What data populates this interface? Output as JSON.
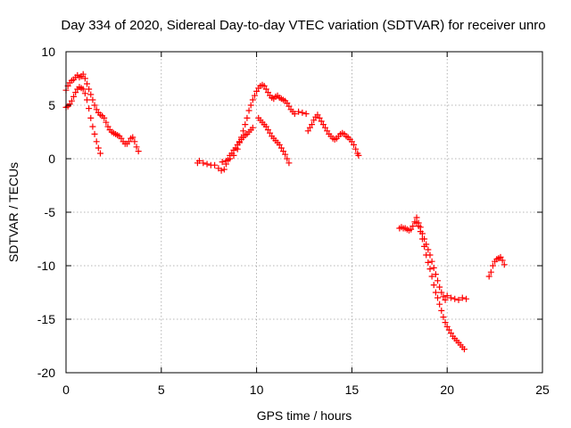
{
  "chart_data": {
    "type": "scatter",
    "title": "Day 334 of 2020, Sidereal Day-to-day VTEC variation (SDTVAR) for receiver unro",
    "xlabel": "GPS time / hours",
    "ylabel": "SDTVAR / TECUs",
    "xlim": [
      0,
      25
    ],
    "ylim": [
      -20,
      10
    ],
    "xticks": [
      0,
      5,
      10,
      15,
      20,
      25
    ],
    "yticks": [
      -20,
      -15,
      -10,
      -5,
      0,
      5,
      10
    ],
    "xtick_labels": [
      "0",
      "5",
      "10",
      "15",
      "20",
      "25"
    ],
    "ytick_labels": [
      "-20",
      "-15",
      "-10",
      "-5",
      "0",
      "5",
      "10"
    ],
    "grid": true,
    "marker": "+",
    "series": [
      {
        "name": "SDTVAR",
        "color": "#ff0000",
        "points": [
          [
            0.0,
            6.4
          ],
          [
            0.1,
            6.8
          ],
          [
            0.2,
            7.1
          ],
          [
            0.3,
            7.3
          ],
          [
            0.4,
            7.4
          ],
          [
            0.5,
            7.6
          ],
          [
            0.6,
            7.8
          ],
          [
            0.7,
            7.6
          ],
          [
            0.8,
            7.7
          ],
          [
            0.9,
            7.9
          ],
          [
            1.0,
            7.5
          ],
          [
            1.1,
            7.0
          ],
          [
            1.2,
            6.5
          ],
          [
            1.3,
            6.0
          ],
          [
            1.4,
            5.5
          ],
          [
            1.5,
            5.0
          ],
          [
            1.6,
            4.6
          ],
          [
            1.7,
            4.3
          ],
          [
            1.8,
            4.1
          ],
          [
            1.9,
            4.0
          ],
          [
            2.0,
            3.8
          ],
          [
            2.1,
            3.4
          ],
          [
            2.2,
            3.0
          ],
          [
            2.3,
            2.7
          ],
          [
            2.4,
            2.5
          ],
          [
            2.5,
            2.4
          ],
          [
            2.6,
            2.3
          ],
          [
            2.7,
            2.2
          ],
          [
            2.8,
            2.1
          ],
          [
            2.9,
            1.9
          ],
          [
            3.0,
            1.6
          ],
          [
            3.1,
            1.4
          ],
          [
            3.2,
            1.4
          ],
          [
            3.3,
            1.6
          ],
          [
            3.4,
            1.9
          ],
          [
            3.5,
            2.0
          ],
          [
            3.6,
            1.6
          ],
          [
            3.7,
            1.1
          ],
          [
            3.8,
            0.7
          ],
          [
            0.0,
            4.8
          ],
          [
            0.1,
            4.9
          ],
          [
            0.2,
            5.1
          ],
          [
            0.3,
            5.4
          ],
          [
            0.4,
            5.8
          ],
          [
            0.5,
            6.2
          ],
          [
            0.6,
            6.5
          ],
          [
            0.7,
            6.7
          ],
          [
            0.8,
            6.6
          ],
          [
            0.9,
            6.5
          ],
          [
            1.0,
            6.1
          ],
          [
            1.1,
            5.5
          ],
          [
            1.2,
            4.7
          ],
          [
            1.3,
            3.8
          ],
          [
            1.4,
            3.0
          ],
          [
            1.5,
            2.3
          ],
          [
            1.6,
            1.6
          ],
          [
            1.7,
            1.0
          ],
          [
            1.8,
            0.5
          ],
          [
            6.9,
            -0.4
          ],
          [
            7.0,
            -0.2
          ],
          [
            7.2,
            -0.4
          ],
          [
            7.4,
            -0.5
          ],
          [
            7.6,
            -0.6
          ],
          [
            7.8,
            -0.6
          ],
          [
            8.0,
            -0.9
          ],
          [
            8.15,
            -1.1
          ],
          [
            8.3,
            -1.0
          ],
          [
            8.4,
            -0.5
          ],
          [
            8.5,
            -0.1
          ],
          [
            8.6,
            0.3
          ],
          [
            8.7,
            0.5
          ],
          [
            8.8,
            0.8
          ],
          [
            8.9,
            1.0
          ],
          [
            9.0,
            1.3
          ],
          [
            9.1,
            1.6
          ],
          [
            9.2,
            1.8
          ],
          [
            9.3,
            2.0
          ],
          [
            9.4,
            2.2
          ],
          [
            9.5,
            2.3
          ],
          [
            9.6,
            2.5
          ],
          [
            9.7,
            2.7
          ],
          [
            9.8,
            2.9
          ],
          [
            8.2,
            -0.3
          ],
          [
            8.4,
            -0.2
          ],
          [
            8.6,
            0.0
          ],
          [
            8.8,
            0.3
          ],
          [
            9.0,
            0.9
          ],
          [
            9.1,
            1.5
          ],
          [
            9.2,
            2.0
          ],
          [
            9.3,
            2.6
          ],
          [
            9.4,
            3.2
          ],
          [
            9.5,
            3.8
          ],
          [
            9.6,
            4.5
          ],
          [
            9.7,
            5.0
          ],
          [
            9.8,
            5.5
          ],
          [
            9.9,
            5.9
          ],
          [
            10.0,
            6.3
          ],
          [
            10.1,
            6.6
          ],
          [
            10.2,
            6.8
          ],
          [
            10.3,
            6.9
          ],
          [
            10.4,
            6.8
          ],
          [
            10.5,
            6.5
          ],
          [
            10.6,
            6.2
          ],
          [
            10.7,
            5.9
          ],
          [
            10.8,
            5.7
          ],
          [
            10.9,
            5.6
          ],
          [
            11.0,
            5.8
          ],
          [
            11.1,
            5.9
          ],
          [
            11.2,
            5.7
          ],
          [
            11.3,
            5.6
          ],
          [
            11.4,
            5.5
          ],
          [
            11.5,
            5.4
          ],
          [
            11.6,
            5.2
          ],
          [
            11.7,
            4.9
          ],
          [
            11.8,
            4.6
          ],
          [
            11.9,
            4.4
          ],
          [
            12.0,
            4.2
          ],
          [
            12.2,
            4.4
          ],
          [
            12.4,
            4.3
          ],
          [
            12.6,
            4.2
          ],
          [
            10.1,
            3.8
          ],
          [
            10.2,
            3.6
          ],
          [
            10.3,
            3.4
          ],
          [
            10.4,
            3.2
          ],
          [
            10.5,
            3.0
          ],
          [
            10.6,
            2.7
          ],
          [
            10.7,
            2.4
          ],
          [
            10.8,
            2.1
          ],
          [
            10.9,
            1.9
          ],
          [
            11.0,
            1.7
          ],
          [
            11.1,
            1.5
          ],
          [
            11.2,
            1.3
          ],
          [
            11.3,
            1.0
          ],
          [
            11.4,
            0.7
          ],
          [
            11.5,
            0.4
          ],
          [
            11.6,
            0.0
          ],
          [
            11.7,
            -0.4
          ],
          [
            12.7,
            2.6
          ],
          [
            12.8,
            2.9
          ],
          [
            12.9,
            3.2
          ],
          [
            13.0,
            3.6
          ],
          [
            13.1,
            3.9
          ],
          [
            13.2,
            4.1
          ],
          [
            13.3,
            3.8
          ],
          [
            13.4,
            3.5
          ],
          [
            13.5,
            3.2
          ],
          [
            13.6,
            2.9
          ],
          [
            13.7,
            2.6
          ],
          [
            13.8,
            2.3
          ],
          [
            13.9,
            2.1
          ],
          [
            14.0,
            1.9
          ],
          [
            14.1,
            1.8
          ],
          [
            14.2,
            1.9
          ],
          [
            14.3,
            2.1
          ],
          [
            14.4,
            2.3
          ],
          [
            14.5,
            2.4
          ],
          [
            14.6,
            2.3
          ],
          [
            14.7,
            2.1
          ],
          [
            14.8,
            2.0
          ],
          [
            14.9,
            1.8
          ],
          [
            15.0,
            1.6
          ],
          [
            15.1,
            1.3
          ],
          [
            15.2,
            0.9
          ],
          [
            15.3,
            0.5
          ],
          [
            15.35,
            0.3
          ],
          [
            17.5,
            -6.5
          ],
          [
            17.6,
            -6.4
          ],
          [
            17.7,
            -6.5
          ],
          [
            17.8,
            -6.5
          ],
          [
            17.9,
            -6.6
          ],
          [
            18.0,
            -6.7
          ],
          [
            18.1,
            -6.6
          ],
          [
            18.2,
            -6.3
          ],
          [
            18.3,
            -5.9
          ],
          [
            18.4,
            -5.5
          ],
          [
            18.5,
            -6.0
          ],
          [
            18.6,
            -6.4
          ],
          [
            18.7,
            -7.0
          ],
          [
            18.8,
            -7.5
          ],
          [
            18.9,
            -8.0
          ],
          [
            19.0,
            -8.5
          ],
          [
            19.1,
            -9.0
          ],
          [
            19.2,
            -9.6
          ],
          [
            19.3,
            -10.2
          ],
          [
            19.4,
            -10.8
          ],
          [
            19.5,
            -11.4
          ],
          [
            19.6,
            -12.0
          ],
          [
            19.7,
            -12.5
          ],
          [
            19.8,
            -12.9
          ],
          [
            19.9,
            -13.2
          ],
          [
            20.0,
            -12.8
          ],
          [
            20.2,
            -13.0
          ],
          [
            20.4,
            -13.1
          ],
          [
            20.6,
            -13.2
          ],
          [
            20.8,
            -13.0
          ],
          [
            21.0,
            -13.1
          ],
          [
            18.4,
            -6.0
          ],
          [
            18.5,
            -6.3
          ],
          [
            18.6,
            -6.8
          ],
          [
            18.7,
            -7.5
          ],
          [
            18.8,
            -8.2
          ],
          [
            18.9,
            -9.0
          ],
          [
            19.0,
            -9.7
          ],
          [
            19.1,
            -10.3
          ],
          [
            19.2,
            -11.0
          ],
          [
            19.3,
            -11.8
          ],
          [
            19.4,
            -12.5
          ],
          [
            19.5,
            -13.0
          ],
          [
            19.6,
            -13.6
          ],
          [
            19.7,
            -14.2
          ],
          [
            19.8,
            -14.8
          ],
          [
            19.9,
            -15.3
          ],
          [
            20.0,
            -15.7
          ],
          [
            20.1,
            -16.0
          ],
          [
            20.2,
            -16.3
          ],
          [
            20.3,
            -16.6
          ],
          [
            20.4,
            -16.8
          ],
          [
            20.5,
            -17.0
          ],
          [
            20.6,
            -17.2
          ],
          [
            20.7,
            -17.4
          ],
          [
            20.8,
            -17.6
          ],
          [
            20.9,
            -17.8
          ],
          [
            22.2,
            -11.0
          ],
          [
            22.3,
            -10.6
          ],
          [
            22.4,
            -10.0
          ],
          [
            22.5,
            -9.6
          ],
          [
            22.6,
            -9.4
          ],
          [
            22.7,
            -9.3
          ],
          [
            22.8,
            -9.2
          ],
          [
            22.9,
            -9.5
          ],
          [
            23.0,
            -9.9
          ]
        ]
      }
    ]
  }
}
